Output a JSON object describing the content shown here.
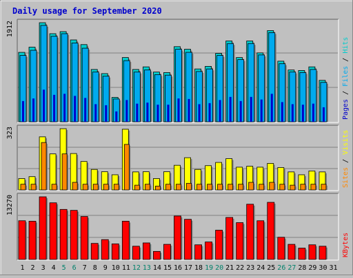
{
  "chart_data": [
    {
      "type": "bar",
      "title": "Daily usage for September 2020",
      "categories": [
        "1",
        "2",
        "3",
        "4",
        "5",
        "6",
        "7",
        "8",
        "9",
        "10",
        "11",
        "12",
        "13",
        "14",
        "15",
        "16",
        "17",
        "18",
        "19",
        "20",
        "21",
        "22",
        "23",
        "24",
        "25",
        "26",
        "27",
        "28",
        "29",
        "30",
        "31"
      ],
      "weekend_days": [
        "5",
        "6",
        "12",
        "13",
        "19",
        "20",
        "26",
        "27"
      ],
      "ymax_label": "1912",
      "ylim": [
        0,
        1912
      ],
      "legend": [
        "Pages",
        "Files",
        "Hits"
      ],
      "series": [
        {
          "name": "Hits",
          "color": "#00cccc",
          "values": [
            1340,
            1440,
            1912,
            1700,
            1740,
            1580,
            1490,
            1010,
            930,
            470,
            1240,
            1010,
            1060,
            960,
            950,
            1450,
            1400,
            1020,
            1070,
            1320,
            1560,
            1240,
            1560,
            1330,
            1760,
            1170,
            1000,
            990,
            1060,
            800,
            0
          ]
        },
        {
          "name": "Files",
          "color": "#00aaee",
          "values": [
            1280,
            1380,
            1860,
            1650,
            1700,
            1520,
            1420,
            960,
            880,
            440,
            1180,
            960,
            1000,
            910,
            900,
            1400,
            1340,
            970,
            1020,
            1280,
            1510,
            1200,
            1510,
            1290,
            1720,
            1120,
            960,
            950,
            1010,
            760,
            0
          ]
        },
        {
          "name": "Pages",
          "color": "#0000cc",
          "values": [
            400,
            450,
            620,
            520,
            540,
            500,
            460,
            340,
            320,
            200,
            420,
            350,
            370,
            330,
            330,
            450,
            440,
            340,
            360,
            420,
            480,
            400,
            480,
            430,
            540,
            380,
            340,
            330,
            350,
            280,
            0
          ]
        }
      ]
    },
    {
      "type": "bar",
      "categories": [
        "1",
        "2",
        "3",
        "4",
        "5",
        "6",
        "7",
        "8",
        "9",
        "10",
        "11",
        "12",
        "13",
        "14",
        "15",
        "16",
        "17",
        "18",
        "19",
        "20",
        "21",
        "22",
        "23",
        "24",
        "25",
        "26",
        "27",
        "28",
        "29",
        "30",
        "31"
      ],
      "ymax_label": "323",
      "ylim": [
        0,
        323
      ],
      "legend": [
        "Sites",
        "Visits"
      ],
      "series": [
        {
          "name": "Visits",
          "color": "#ffff00",
          "values": [
            60,
            70,
            280,
            190,
            323,
            192,
            150,
            108,
            96,
            80,
            320,
            95,
            96,
            60,
            96,
            130,
            170,
            108,
            128,
            145,
            165,
            120,
            125,
            120,
            140,
            118,
            95,
            80,
            100,
            95,
            0
          ]
        },
        {
          "name": "Sites",
          "color": "#ff8800",
          "values": [
            30,
            30,
            250,
            30,
            190,
            40,
            30,
            30,
            30,
            30,
            240,
            25,
            30,
            20,
            30,
            30,
            35,
            30,
            30,
            30,
            30,
            30,
            40,
            30,
            40,
            30,
            25,
            30,
            30,
            30,
            0
          ]
        }
      ]
    },
    {
      "type": "bar",
      "categories": [
        "1",
        "2",
        "3",
        "4",
        "5",
        "6",
        "7",
        "8",
        "9",
        "10",
        "11",
        "12",
        "13",
        "14",
        "15",
        "16",
        "17",
        "18",
        "19",
        "20",
        "21",
        "22",
        "23",
        "24",
        "25",
        "26",
        "27",
        "28",
        "29",
        "30",
        "31"
      ],
      "ymax_label": "13270",
      "ylim": [
        0,
        13270
      ],
      "legend": [
        "KBytes"
      ],
      "series": [
        {
          "name": "KBytes",
          "color": "#ff0000",
          "values": [
            8200,
            8100,
            13270,
            12000,
            10600,
            10400,
            9100,
            3400,
            4200,
            3300,
            8100,
            2800,
            3500,
            1700,
            3200,
            9200,
            8500,
            3100,
            3700,
            6200,
            8900,
            7800,
            11700,
            8200,
            12100,
            4700,
            3200,
            2400,
            3100,
            2800,
            0
          ]
        }
      ]
    }
  ]
}
